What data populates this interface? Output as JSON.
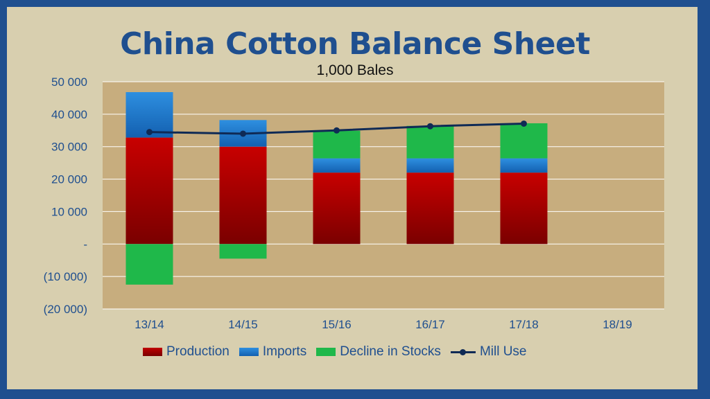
{
  "title": "China Cotton Balance Sheet",
  "subtitle": "1,000 Bales",
  "chart_data": {
    "type": "bar",
    "stacked": true,
    "categories": [
      "13/14",
      "14/15",
      "15/16",
      "16/17",
      "17/18",
      "18/19"
    ],
    "series": [
      {
        "name": "Production",
        "type": "bar",
        "color": "#c00000",
        "values": [
          32800,
          30000,
          22000,
          22000,
          22000,
          null
        ]
      },
      {
        "name": "Imports",
        "type": "bar",
        "color": "#1f7fd4",
        "values": [
          14000,
          8200,
          4400,
          4400,
          4400,
          null
        ]
      },
      {
        "name": "Decline in Stocks",
        "type": "bar",
        "color": "#1fb84a",
        "values": [
          -12500,
          -4500,
          8500,
          10000,
          10800,
          null
        ]
      },
      {
        "name": "Mill Use",
        "type": "line",
        "color": "#0f2a55",
        "values": [
          34500,
          34000,
          35000,
          36300,
          37100,
          null
        ]
      }
    ],
    "ylim": [
      -20000,
      50000
    ],
    "yticks": [
      50000,
      40000,
      30000,
      20000,
      10000,
      0,
      -10000,
      -20000
    ],
    "ytick_labels": [
      "50 000",
      "40 000",
      "30 000",
      "20 000",
      "10 000",
      "-",
      "(10 000)",
      "(20 000)"
    ],
    "grid": true,
    "legend": "bottom"
  }
}
